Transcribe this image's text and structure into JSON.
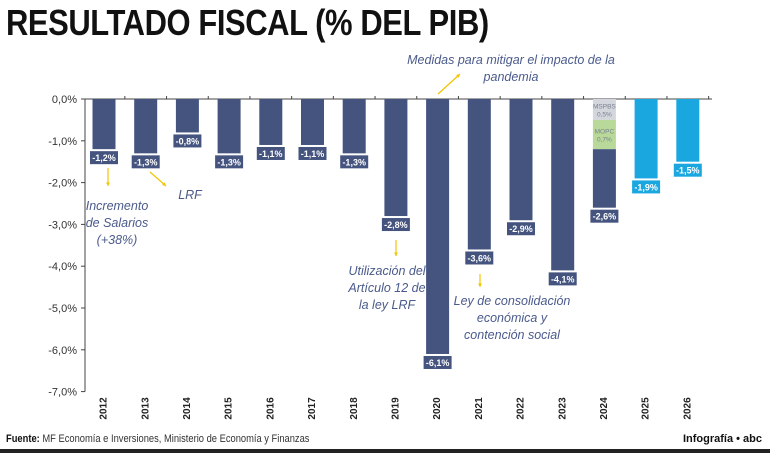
{
  "title": "RESULTADO FISCAL (% DEL PIB)",
  "chart_data": {
    "type": "bar",
    "categories": [
      "2012",
      "2013",
      "2014",
      "2015",
      "2016",
      "2017",
      "2018",
      "2019",
      "2020",
      "2021",
      "2022",
      "2023",
      "2024",
      "2025",
      "2026"
    ],
    "values": [
      -1.2,
      -1.3,
      -0.8,
      -1.3,
      -1.1,
      -1.1,
      -1.3,
      -2.8,
      -6.1,
      -3.6,
      -2.9,
      -4.1,
      -2.6,
      -1.9,
      -1.5
    ],
    "data_labels": [
      "-1,2%",
      "-1,3%",
      "-0,8%",
      "-1,3%",
      "-1,1%",
      "-1,1%",
      "-1,3%",
      "-2,8%",
      "-6,1%",
      "-3,6%",
      "-2,9%",
      "-4,1%",
      "-2,6%",
      "-1,9%",
      "-1,5%"
    ],
    "projected": [
      false,
      false,
      false,
      false,
      false,
      false,
      false,
      false,
      false,
      false,
      false,
      false,
      false,
      true,
      true
    ],
    "colors": {
      "actual": "#45547f",
      "projected": "#1aa7e0",
      "mspbs": "#d3d6dc",
      "mopc": "#b9d99a"
    },
    "stacked_2024": [
      {
        "name": "MSPBS",
        "value": 0.5,
        "label": "0,5%"
      },
      {
        "name": "MOPC",
        "value": 0.7,
        "label": "0,7%"
      }
    ],
    "yticks": [
      0,
      -1,
      -2,
      -3,
      -4,
      -5,
      -6,
      -7
    ],
    "ytick_labels": [
      "0,0%",
      "-1,0%",
      "-2,0%",
      "-3,0%",
      "-4,0%",
      "-5,0%",
      "-6,0%",
      "-7,0%"
    ],
    "ylim": [
      -7,
      0
    ],
    "annotations": [
      {
        "text": "Incremento de Salarios (+38%)",
        "year": "2012"
      },
      {
        "text": "LRF",
        "year": "2013"
      },
      {
        "text": "Utilización del Artículo 12 de la ley LRF",
        "year": "2019"
      },
      {
        "text": "Medidas para mitigar el impacto de la pandemia",
        "year": "2020"
      },
      {
        "text": "Ley de consolidación económica y contención social",
        "year": "2021"
      }
    ]
  },
  "footer": {
    "source_label": "Fuente:",
    "source": "MF Economía e Inversiones, Ministerio de Economía y Finanzas",
    "credit": "Infografía • abc"
  }
}
